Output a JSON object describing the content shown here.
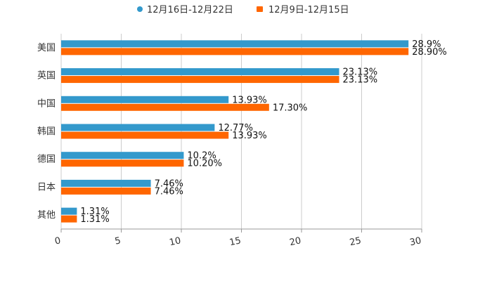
{
  "chart_data": {
    "type": "bar",
    "orientation": "horizontal",
    "categories": [
      "美国",
      "英国",
      "中国",
      "韩国",
      "德国",
      "日本",
      "其他"
    ],
    "series": [
      {
        "name": "12月16日-12月22日",
        "color": "#3399cc",
        "values": [
          28.9,
          23.13,
          13.93,
          12.77,
          10.2,
          7.46,
          1.31
        ],
        "labels": [
          "28.9%",
          "23.13%",
          "13.93%",
          "12.77%",
          "10.2%",
          "7.46%",
          "1.31%"
        ]
      },
      {
        "name": "12月9日-12月15日",
        "color": "#ff6600",
        "values": [
          28.9,
          23.13,
          17.3,
          13.93,
          10.2,
          7.46,
          1.31
        ],
        "labels": [
          "28.90%",
          "23.13%",
          "17.30%",
          "13.93%",
          "10.20%",
          "7.46%",
          "1.31%"
        ]
      }
    ],
    "xlim": [
      0,
      30
    ],
    "xticks": [
      0,
      5,
      10,
      15,
      20,
      25,
      30
    ],
    "tick_labels": [
      "0",
      "5",
      "10",
      "15",
      "20",
      "25",
      "30"
    ],
    "grid": true,
    "legend_position": "top-center",
    "title": "",
    "xlabel": "",
    "ylabel": ""
  }
}
